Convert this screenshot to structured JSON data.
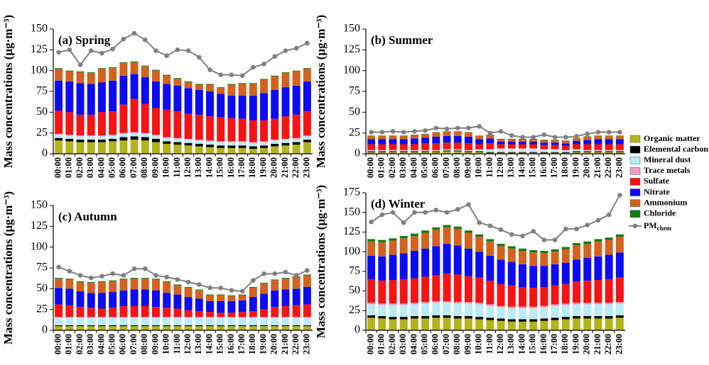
{
  "chart_data": [
    {
      "type": "bar",
      "stacked": true,
      "title": "(a) Spring",
      "ylabel": "Mass concentrations (μg·m⁻³)",
      "categories": [
        "00:00",
        "01:00",
        "02:00",
        "03:00",
        "04:00",
        "05:00",
        "06:00",
        "07:00",
        "08:00",
        "09:00",
        "10:00",
        "11:00",
        "12:00",
        "13:00",
        "14:00",
        "15:00",
        "16:00",
        "17:00",
        "18:00",
        "19:00",
        "20:00",
        "21:00",
        "22:00",
        "23:00"
      ],
      "ylim": [
        0,
        150
      ],
      "yticks": [
        0,
        25,
        50,
        75,
        100,
        125,
        150
      ],
      "series": [
        {
          "name": "Organic matter",
          "color": "#b3b31b",
          "values": [
            16,
            15,
            14,
            14,
            14,
            15,
            16,
            17,
            16,
            14,
            12,
            11,
            10,
            9,
            8,
            7,
            7,
            7,
            6,
            7,
            9,
            10,
            11,
            14
          ]
        },
        {
          "name": "Elemental carbon",
          "color": "#000000",
          "values": [
            3,
            3,
            3,
            3,
            3,
            3,
            4,
            4,
            4,
            4,
            3,
            3,
            3,
            3,
            3,
            3,
            3,
            3,
            3,
            3,
            3,
            3,
            3,
            3
          ]
        },
        {
          "name": "Mineral dust",
          "color": "#b8ecf7",
          "values": [
            4,
            4,
            4,
            4,
            4,
            4,
            4,
            4,
            4,
            4,
            4,
            4,
            4,
            4,
            4,
            4,
            4,
            4,
            4,
            4,
            4,
            4,
            4,
            4
          ]
        },
        {
          "name": "Trace metals",
          "color": "#f59ac3",
          "values": [
            1,
            1,
            1,
            1,
            1,
            1,
            1,
            1,
            1,
            1,
            1,
            1,
            1,
            1,
            1,
            1,
            1,
            1,
            1,
            1,
            1,
            1,
            1,
            1
          ]
        },
        {
          "name": "Sulfate",
          "color": "#f51414",
          "values": [
            28,
            27,
            25,
            25,
            28,
            28,
            34,
            40,
            35,
            32,
            33,
            32,
            30,
            30,
            29,
            29,
            28,
            27,
            26,
            25,
            25,
            27,
            28,
            29
          ]
        },
        {
          "name": "Nitrate",
          "color": "#0c0cf2",
          "values": [
            36,
            37,
            38,
            37,
            36,
            37,
            35,
            30,
            32,
            32,
            31,
            31,
            31,
            30,
            30,
            28,
            27,
            28,
            30,
            33,
            35,
            35,
            35,
            36
          ]
        },
        {
          "name": "Ammonium",
          "color": "#d5611f",
          "values": [
            14,
            12,
            13,
            13,
            16,
            15,
            15,
            14,
            13,
            13,
            10,
            8,
            7,
            6,
            8,
            7,
            13,
            14,
            14,
            16,
            16,
            17,
            17,
            15
          ]
        },
        {
          "name": "Chloride",
          "color": "#0e7d12",
          "values": [
            1,
            1,
            1,
            1,
            1,
            1,
            1,
            1,
            1,
            1,
            1,
            1,
            1,
            1,
            1,
            1,
            1,
            1,
            1,
            1,
            1,
            1,
            1,
            1
          ]
        }
      ],
      "line": {
        "name": "PM",
        "name_subscript": "chem",
        "color": "#808080",
        "values": [
          122,
          125,
          107,
          124,
          121,
          126,
          138,
          145,
          137,
          124,
          118,
          125,
          124,
          116,
          101,
          95,
          95,
          94,
          104,
          108,
          117,
          124,
          127,
          133
        ]
      }
    },
    {
      "type": "bar",
      "stacked": true,
      "title": "(b) Summer",
      "ylabel": "Mass concentrations (μg·m⁻³)",
      "categories": [
        "00:00",
        "01:00",
        "02:00",
        "03:00",
        "04:00",
        "05:00",
        "06:00",
        "07:00",
        "08:00",
        "09:00",
        "10:00",
        "11:00",
        "12:00",
        "13:00",
        "14:00",
        "15:00",
        "16:00",
        "17:00",
        "18:00",
        "19:00",
        "20:00",
        "21:00",
        "22:00",
        "23:00"
      ],
      "ylim": [
        0,
        150
      ],
      "yticks": [
        0,
        25,
        50,
        75,
        100,
        125,
        150
      ],
      "series": [
        {
          "values": [
            2,
            2,
            2,
            2,
            2,
            2,
            2,
            3,
            3,
            2,
            2,
            1,
            1,
            1,
            1,
            1,
            1,
            1,
            1,
            2,
            2,
            2,
            2,
            2
          ]
        },
        {
          "values": [
            1,
            1,
            1,
            1,
            1,
            1,
            1,
            1,
            1,
            1,
            1,
            1,
            1,
            1,
            1,
            1,
            1,
            1,
            1,
            1,
            1,
            1,
            1,
            1
          ]
        },
        {
          "values": [
            1,
            1,
            1,
            1,
            1,
            1,
            1,
            1,
            1,
            1,
            2,
            3,
            4,
            4,
            4,
            4,
            3,
            3,
            2,
            2,
            1,
            1,
            1,
            1
          ]
        },
        {
          "values": [
            0.5,
            0.5,
            0.5,
            0.5,
            0.5,
            0.5,
            0.5,
            0.5,
            0.5,
            0.5,
            0.5,
            0.5,
            0.5,
            0.5,
            0.5,
            0.5,
            0.5,
            0.5,
            0.5,
            0.5,
            0.5,
            0.5,
            0.5,
            0.5
          ]
        },
        {
          "values": [
            7,
            7,
            7,
            7,
            7,
            8,
            8,
            8,
            8,
            8,
            6,
            7,
            5,
            5,
            5,
            5,
            5,
            5,
            5,
            6,
            7,
            7,
            7,
            7
          ]
        },
        {
          "values": [
            6,
            6,
            6,
            6,
            7,
            7,
            8,
            8,
            8,
            8,
            6,
            6,
            3,
            3,
            3,
            3,
            3,
            3,
            3,
            4,
            5,
            6,
            6,
            6
          ]
        },
        {
          "values": [
            4,
            4,
            4,
            4,
            4,
            4,
            5,
            5,
            5,
            5,
            4,
            4,
            3,
            3,
            3,
            3,
            3,
            3,
            3,
            3,
            4,
            4,
            4,
            4
          ]
        },
        {
          "values": [
            0.5,
            0.5,
            0.5,
            0.5,
            0.5,
            0.5,
            0.5,
            0.5,
            0.5,
            0.5,
            0.5,
            0.5,
            0.5,
            0.5,
            0.5,
            0.5,
            0.5,
            0.5,
            0.5,
            0.5,
            0.5,
            0.5,
            0.5,
            0.5
          ]
        }
      ],
      "line": {
        "values": [
          26,
          26,
          27,
          26,
          27,
          28,
          31,
          30,
          31,
          31,
          33,
          25,
          27,
          22,
          20,
          20,
          23,
          20,
          20,
          21,
          24,
          26,
          26,
          26
        ]
      }
    },
    {
      "type": "bar",
      "stacked": true,
      "title": "(c) Autumn",
      "ylabel": "Mass concentrations (μg·m⁻³)",
      "categories": [
        "00:00",
        "01:00",
        "02:00",
        "03:00",
        "04:00",
        "05:00",
        "06:00",
        "07:00",
        "08:00",
        "09:00",
        "10:00",
        "11:00",
        "12:00",
        "13:00",
        "14:00",
        "15:00",
        "16:00",
        "17:00",
        "18:00",
        "19:00",
        "20:00",
        "21:00",
        "22:00",
        "23:00"
      ],
      "ylim": [
        0,
        150
      ],
      "yticks": [
        0,
        25,
        50,
        75,
        100,
        125,
        150
      ],
      "series": [
        {
          "values": [
            5,
            5,
            5,
            5,
            5,
            5,
            5,
            5,
            5,
            5,
            5,
            5,
            5,
            5,
            5,
            5,
            5,
            5,
            5,
            5,
            5,
            5,
            5,
            5
          ]
        },
        {
          "values": [
            1,
            1,
            1,
            1,
            1,
            1,
            1,
            1,
            1,
            1,
            1,
            1,
            1,
            1,
            1,
            1,
            1,
            1,
            1,
            1,
            1,
            1,
            1,
            1
          ]
        },
        {
          "values": [
            9,
            9,
            9,
            9,
            9,
            9,
            9,
            9,
            9,
            9,
            9,
            9,
            9,
            9,
            9,
            9,
            9,
            9,
            9,
            9,
            9,
            9,
            9,
            9
          ]
        },
        {
          "values": [
            1,
            1,
            1,
            1,
            1,
            1,
            1,
            1,
            1,
            1,
            1,
            1,
            1,
            1,
            1,
            1,
            1,
            1,
            1,
            1,
            1,
            1,
            1,
            1
          ]
        },
        {
          "values": [
            15,
            14,
            12,
            11,
            10,
            11,
            13,
            13,
            13,
            12,
            11,
            10,
            8,
            7,
            6,
            5,
            5,
            6,
            7,
            9,
            12,
            13,
            14,
            15
          ]
        },
        {
          "values": [
            20,
            20,
            19,
            18,
            19,
            19,
            19,
            20,
            20,
            20,
            18,
            17,
            16,
            15,
            13,
            14,
            14,
            14,
            17,
            19,
            20,
            20,
            20,
            21
          ]
        },
        {
          "values": [
            11,
            11,
            11,
            12,
            13,
            13,
            13,
            13,
            13,
            13,
            13,
            11,
            11,
            10,
            7,
            7,
            6,
            6,
            11,
            12,
            12,
            13,
            14,
            14
          ]
        },
        {
          "values": [
            1,
            1,
            1,
            1,
            1,
            1,
            1,
            1,
            1,
            1,
            1,
            1,
            1,
            1,
            1,
            1,
            1,
            1,
            1,
            1,
            1,
            1,
            1,
            1
          ]
        }
      ],
      "line": {
        "values": [
          76,
          71,
          66,
          63,
          65,
          68,
          66,
          74,
          74,
          66,
          64,
          61,
          58,
          55,
          51,
          51,
          48,
          47,
          60,
          68,
          68,
          70,
          66,
          72
        ]
      }
    },
    {
      "type": "bar",
      "stacked": true,
      "title": "(d) Winter",
      "ylabel": "Mass concentrations (μg·m⁻³)",
      "categories": [
        "00:00",
        "01:00",
        "02:00",
        "03:00",
        "04:00",
        "05:00",
        "06:00",
        "07:00",
        "08:00",
        "09:00",
        "10:00",
        "11:00",
        "12:00",
        "13:00",
        "14:00",
        "15:00",
        "16:00",
        "17:00",
        "18:00",
        "19:00",
        "20:00",
        "21:00",
        "22:00",
        "23:00"
      ],
      "ylim": [
        0,
        175
      ],
      "yticks": [
        0,
        25,
        50,
        75,
        100,
        125,
        150,
        175
      ],
      "series": [
        {
          "values": [
            16,
            15,
            14,
            14,
            15,
            15,
            16,
            16,
            15,
            15,
            14,
            13,
            12,
            11,
            11,
            11,
            12,
            13,
            14,
            15,
            15,
            15,
            15,
            16
          ]
        },
        {
          "values": [
            3,
            3,
            3,
            3,
            3,
            3,
            3,
            3,
            3,
            3,
            3,
            3,
            3,
            3,
            3,
            3,
            3,
            3,
            3,
            3,
            3,
            3,
            3,
            3
          ]
        },
        {
          "values": [
            14,
            14,
            15,
            15,
            15,
            16,
            16,
            16,
            16,
            16,
            16,
            15,
            14,
            14,
            14,
            14,
            14,
            15,
            15,
            15,
            15,
            15,
            15,
            15
          ]
        },
        {
          "values": [
            2,
            2,
            2,
            2,
            2,
            2,
            2,
            2,
            2,
            2,
            2,
            2,
            2,
            2,
            2,
            2,
            2,
            2,
            2,
            2,
            2,
            2,
            2,
            2
          ]
        },
        {
          "values": [
            30,
            29,
            30,
            31,
            31,
            32,
            33,
            35,
            35,
            33,
            32,
            30,
            28,
            27,
            25,
            24,
            24,
            24,
            25,
            27,
            28,
            29,
            30,
            31
          ]
        },
        {
          "values": [
            30,
            31,
            32,
            33,
            35,
            36,
            37,
            38,
            37,
            35,
            33,
            32,
            31,
            30,
            29,
            28,
            27,
            27,
            27,
            28,
            29,
            30,
            31,
            32
          ]
        },
        {
          "values": [
            18,
            18,
            18,
            19,
            19,
            20,
            21,
            21,
            21,
            20,
            19,
            18,
            17,
            17,
            17,
            17,
            16,
            16,
            17,
            18,
            18,
            19,
            19,
            20
          ]
        },
        {
          "values": [
            3,
            3,
            3,
            3,
            3,
            3,
            3,
            3,
            3,
            3,
            3,
            3,
            3,
            3,
            3,
            3,
            3,
            3,
            3,
            3,
            3,
            3,
            3,
            3
          ]
        }
      ],
      "line": {
        "values": [
          138,
          147,
          150,
          137,
          150,
          150,
          153,
          150,
          154,
          160,
          137,
          133,
          128,
          122,
          120,
          126,
          115,
          115,
          129,
          129,
          134,
          140,
          147,
          172
        ]
      }
    }
  ]
}
